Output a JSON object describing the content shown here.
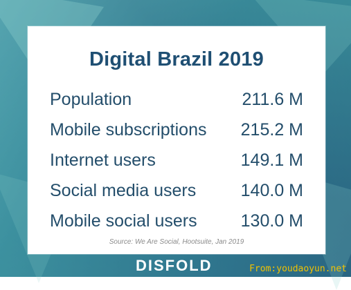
{
  "title": "Digital Brazil 2019",
  "rows": [
    {
      "label": "Population",
      "value": "211.6 M"
    },
    {
      "label": "Mobile subscriptions",
      "value": "215.2 M"
    },
    {
      "label": "Internet users",
      "value": "149.1 M"
    },
    {
      "label": "Social media users",
      "value": "140.0 M"
    },
    {
      "label": "Mobile social users",
      "value": "130.0 M"
    }
  ],
  "source": "Source: We Are Social, Hootsuite, Jan 2019",
  "brand": "DISFOLD",
  "watermark": "From:youdaoyun.net",
  "colors": {
    "title": "#1f4f73",
    "text": "#244e6b",
    "background_teal": "#2f7f96",
    "watermark": "#f2c200"
  }
}
